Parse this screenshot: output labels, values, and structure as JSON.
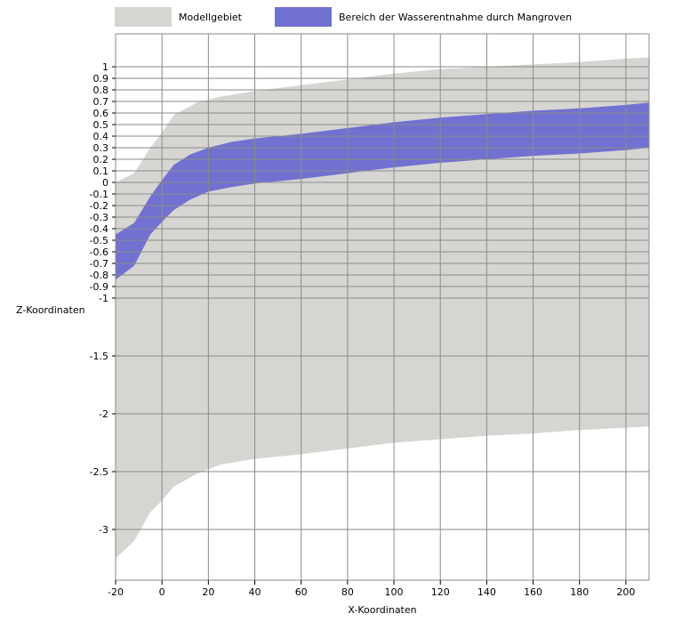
{
  "chart_data": {
    "type": "area",
    "xlabel": "X-Koordinaten",
    "ylabel": "Z-Koordinaten",
    "xlim": [
      -20,
      210
    ],
    "ylim": [
      -3.45,
      1.2
    ],
    "x_ticks": [
      -20,
      0,
      20,
      40,
      60,
      80,
      100,
      120,
      140,
      160,
      180,
      200
    ],
    "y_ticks": [
      1,
      0.9,
      0.8,
      0.7,
      0.6,
      0.5,
      0.4,
      0.3,
      0.2,
      0.1,
      0,
      -0.1,
      -0.2,
      -0.3,
      -0.4,
      -0.5,
      -0.6,
      -0.7,
      -0.8,
      -0.9,
      -1,
      -1.5,
      -2,
      -2.5,
      -3
    ],
    "y_tick_labels": [
      "1",
      "0.9",
      "0.8",
      "0.7",
      "0.6",
      "0.5",
      "0.4",
      "0.3",
      "0.2",
      "0.1",
      "0",
      "-0.1",
      "-0.2",
      "-0.3",
      "-0.4",
      "-0.5",
      "-0.6",
      "-0.7",
      "-0.8",
      "-0.9",
      "-1",
      "-1.5",
      "-2",
      "-2.5",
      "-3"
    ],
    "grid": true,
    "legend_position": "top",
    "series": [
      {
        "name": "Modellgebiet",
        "color": "#d6d5d2",
        "x": [
          -20,
          -12,
          -5,
          0,
          5,
          15,
          25,
          40,
          60,
          80,
          100,
          120,
          140,
          160,
          180,
          200,
          210
        ],
        "upper": [
          0,
          0.08,
          0.3,
          0.43,
          0.58,
          0.69,
          0.74,
          0.79,
          0.84,
          0.89,
          0.94,
          0.98,
          1.0,
          1.02,
          1.04,
          1.07,
          1.08
        ],
        "lower": [
          -3.25,
          -3.1,
          -2.85,
          -2.75,
          -2.63,
          -2.52,
          -2.44,
          -2.39,
          -2.35,
          -2.3,
          -2.25,
          -2.22,
          -2.19,
          -2.17,
          -2.14,
          -2.12,
          -2.11
        ]
      },
      {
        "name": "Bereich der Wasserentnahme durch Mangroven",
        "color": "#7171d1",
        "x": [
          -20,
          -12,
          -5,
          0,
          5,
          12,
          20,
          30,
          40,
          60,
          80,
          100,
          120,
          140,
          160,
          180,
          200,
          210
        ],
        "upper": [
          -0.45,
          -0.35,
          -0.12,
          0.02,
          0.15,
          0.24,
          0.3,
          0.35,
          0.38,
          0.42,
          0.47,
          0.52,
          0.56,
          0.59,
          0.62,
          0.64,
          0.67,
          0.69
        ],
        "lower": [
          -0.84,
          -0.72,
          -0.45,
          -0.34,
          -0.24,
          -0.15,
          -0.08,
          -0.04,
          -0.01,
          0.03,
          0.08,
          0.13,
          0.17,
          0.2,
          0.23,
          0.25,
          0.28,
          0.3
        ]
      }
    ]
  }
}
